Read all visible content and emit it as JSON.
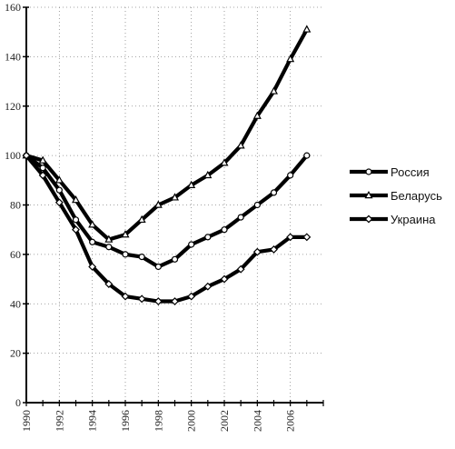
{
  "chart_data": {
    "type": "line",
    "title": "",
    "xlabel": "",
    "ylabel": "",
    "x": [
      1990,
      1991,
      1992,
      1993,
      1994,
      1995,
      1996,
      1997,
      1998,
      1999,
      2000,
      2001,
      2002,
      2003,
      2004,
      2005,
      2006,
      2007
    ],
    "x_tick_labels": [
      "1990",
      "1992",
      "1994",
      "1996",
      "1998",
      "2000",
      "2002",
      "2004",
      "2006"
    ],
    "y_tick_labels": [
      "0",
      "20",
      "40",
      "60",
      "80",
      "100",
      "120",
      "140",
      "160"
    ],
    "xlim": [
      1990,
      2008
    ],
    "ylim": [
      0,
      160
    ],
    "grid": "dotted",
    "legend_position": "right",
    "series": [
      {
        "name": "Россия",
        "marker": "circle",
        "values": [
          100,
          95,
          86,
          74,
          65,
          63,
          60,
          59,
          55,
          58,
          64,
          67,
          70,
          75,
          80,
          85,
          92,
          100
        ]
      },
      {
        "name": "Беларусь",
        "marker": "triangle",
        "values": [
          100,
          98,
          90,
          82,
          72,
          66,
          68,
          74,
          80,
          83,
          88,
          92,
          97,
          104,
          116,
          126,
          139,
          151
        ]
      },
      {
        "name": "Украина",
        "marker": "diamond",
        "values": [
          100,
          92,
          81,
          70,
          55,
          48,
          43,
          42,
          41,
          41,
          43,
          47,
          50,
          54,
          61,
          62,
          67,
          67
        ]
      }
    ]
  }
}
